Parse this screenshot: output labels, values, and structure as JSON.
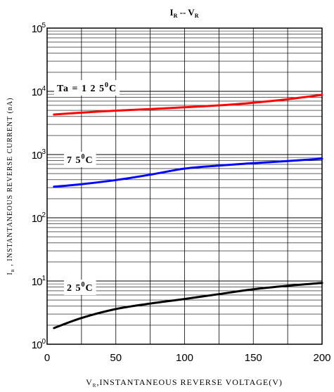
{
  "chart_data": {
    "type": "line",
    "title": {
      "main_a": "I",
      "sub_a": "R",
      "sep": " -- ",
      "main_b": "V",
      "sub_b": "R"
    },
    "xlabel": {
      "main": "V",
      "sub": "R",
      "rest": ",INSTANTANEOUS REVERSE VOLTAGE(V)"
    },
    "ylabel": {
      "main": "I",
      "sub": "R",
      "rest": " , INSTANTANEOUS REVERSE CURRENT (nA)"
    },
    "x_ticks": [
      "0",
      "50",
      "100",
      "150",
      "200"
    ],
    "y_ticks": [
      {
        "base": "10",
        "exp": "0"
      },
      {
        "base": "10",
        "exp": "1"
      },
      {
        "base": "10",
        "exp": "2"
      },
      {
        "base": "10",
        "exp": "3"
      },
      {
        "base": "10",
        "exp": "4"
      },
      {
        "base": "10",
        "exp": "5"
      }
    ],
    "xlim": [
      0,
      200
    ],
    "ylim": [
      1,
      100000
    ],
    "yscale": "log",
    "grid": true,
    "series": [
      {
        "color": "#ff0000",
        "label": {
          "text": "Ta = 1 2 5",
          "sup": "0",
          "unit": "C"
        },
        "x": [
          5,
          25,
          50,
          75,
          100,
          125,
          150,
          175,
          200
        ],
        "y": [
          4300,
          4600,
          4950,
          5250,
          5600,
          6000,
          6600,
          7500,
          8800
        ]
      },
      {
        "color": "#0000ff",
        "label": {
          "text": "7 5",
          "sup": "0",
          "unit": "C"
        },
        "x": [
          5,
          25,
          50,
          75,
          100,
          125,
          150,
          175,
          200
        ],
        "y": [
          310,
          340,
          395,
          480,
          600,
          670,
          730,
          790,
          860
        ]
      },
      {
        "color": "#000000",
        "label": {
          "text": "2 5",
          "sup": "0",
          "unit": "C"
        },
        "x": [
          5,
          25,
          50,
          75,
          100,
          125,
          150,
          175,
          200
        ],
        "y": [
          1.8,
          2.6,
          3.6,
          4.4,
          5.2,
          6.2,
          7.4,
          8.4,
          9.3
        ]
      }
    ]
  }
}
